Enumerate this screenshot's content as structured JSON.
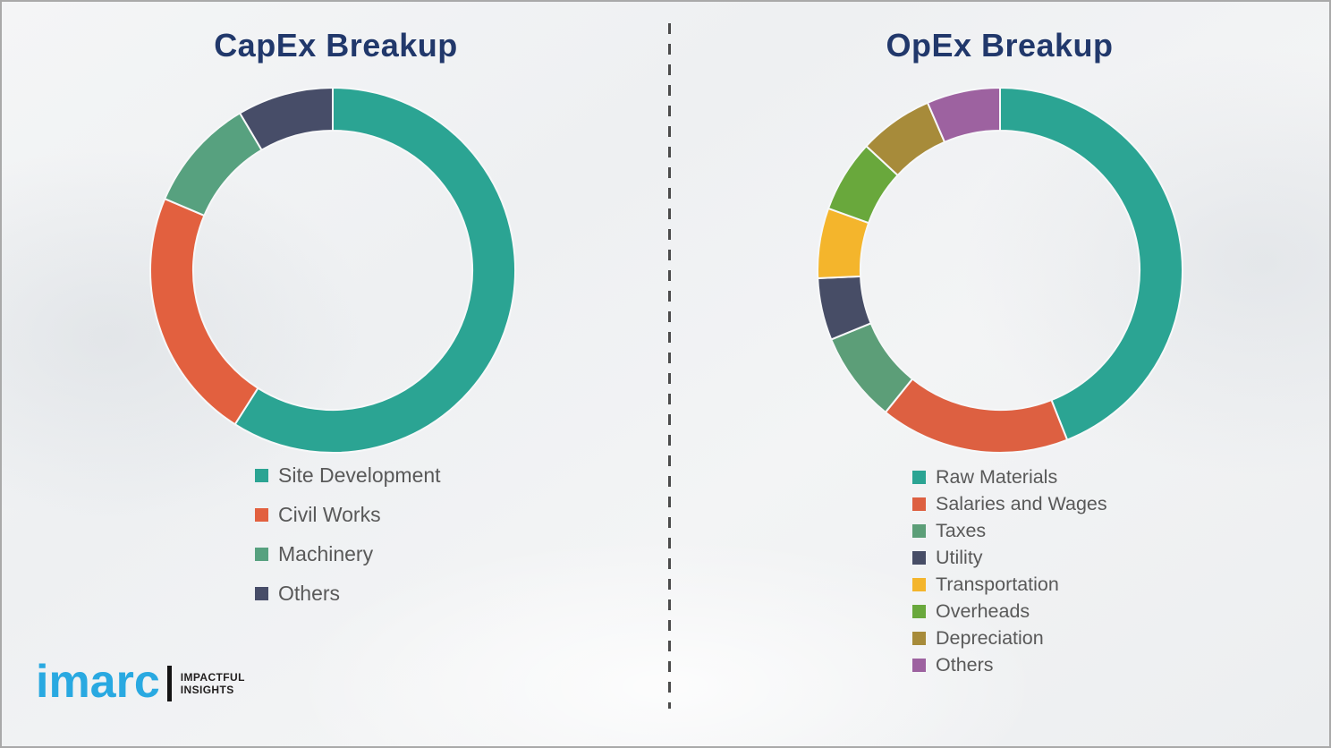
{
  "page": {
    "background_color": "#f0f1f3",
    "title_color": "#21386b",
    "legend_text_color": "#595959",
    "divider_style": "vertical-dashed-line"
  },
  "chart_data": [
    {
      "id": "capex",
      "type": "pie",
      "subtype": "donut",
      "title": "CapEx Breakup",
      "start_angle_deg": 0,
      "direction": "clockwise",
      "inner_radius_ratio": 0.765,
      "legend_position": "bottom",
      "labels": [
        "Site Development",
        "Civil Works",
        "Machinery",
        "Others"
      ],
      "values": [
        59,
        22.4,
        10.1,
        8.5
      ],
      "colors": [
        "#2BA493",
        "#E2603F",
        "#57A17F",
        "#474D68"
      ]
    },
    {
      "id": "opex",
      "type": "pie",
      "subtype": "donut",
      "title": "OpEx Breakup",
      "start_angle_deg": 0,
      "direction": "clockwise",
      "inner_radius_ratio": 0.765,
      "legend_position": "bottom",
      "labels": [
        "Raw Materials",
        "Salaries and Wages",
        "Taxes",
        "Utility",
        "Transportation",
        "Overheads",
        "Depreciation",
        "Others"
      ],
      "values": [
        44,
        16.8,
        8,
        5.5,
        6.2,
        6.4,
        6.6,
        6.5
      ],
      "colors": [
        "#2BA493",
        "#DD6041",
        "#5C9E78",
        "#474D66",
        "#F4B52C",
        "#69A83C",
        "#A78B3A",
        "#9D62A0"
      ]
    }
  ],
  "logo": {
    "wordmark": "imarc",
    "tagline_line1": "IMPACTFUL",
    "tagline_line2": "INSIGHTS",
    "brand_color": "#29a9e1"
  }
}
